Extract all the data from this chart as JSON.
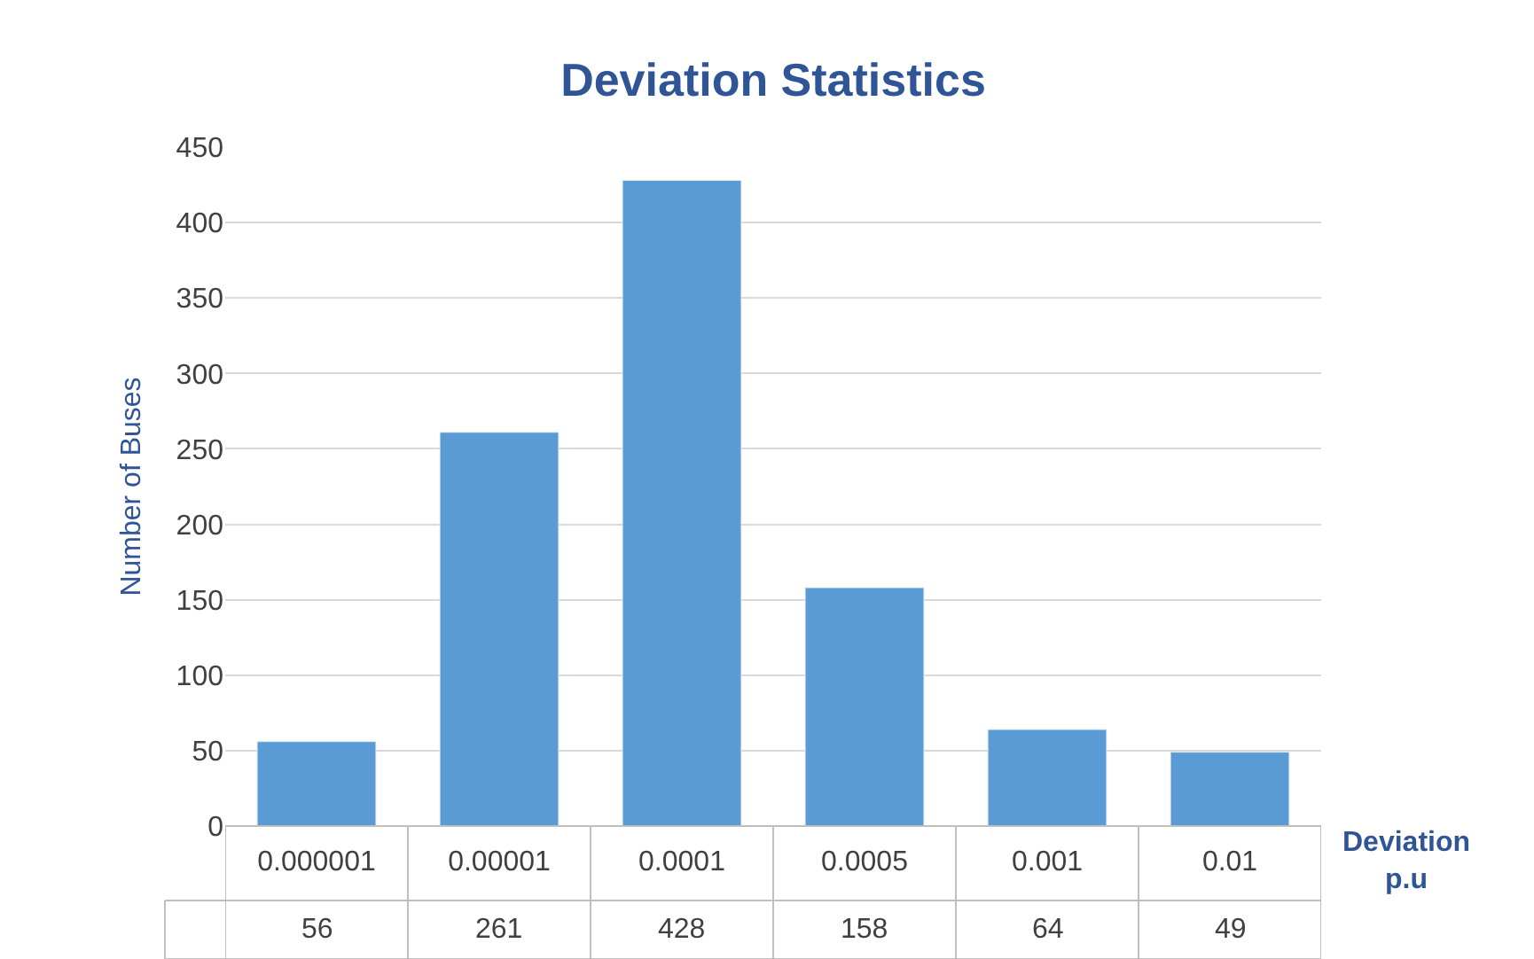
{
  "chart_data": {
    "type": "bar",
    "title": "Deviation Statistics",
    "xlabel": "Deviation\np.u",
    "ylabel": "Number of Buses",
    "categories": [
      "0.000001",
      "0.00001",
      "0.0001",
      "0.0005",
      "0.001",
      "0.01"
    ],
    "series": [
      {
        "color": "#5b9bd5",
        "values": [
          56,
          261,
          428,
          158,
          64,
          49
        ]
      }
    ],
    "ylim": [
      0,
      450
    ],
    "yticks": [
      0,
      50,
      100,
      150,
      200,
      250,
      300,
      350,
      400,
      450
    ],
    "grid": "y",
    "data_labels": true
  }
}
